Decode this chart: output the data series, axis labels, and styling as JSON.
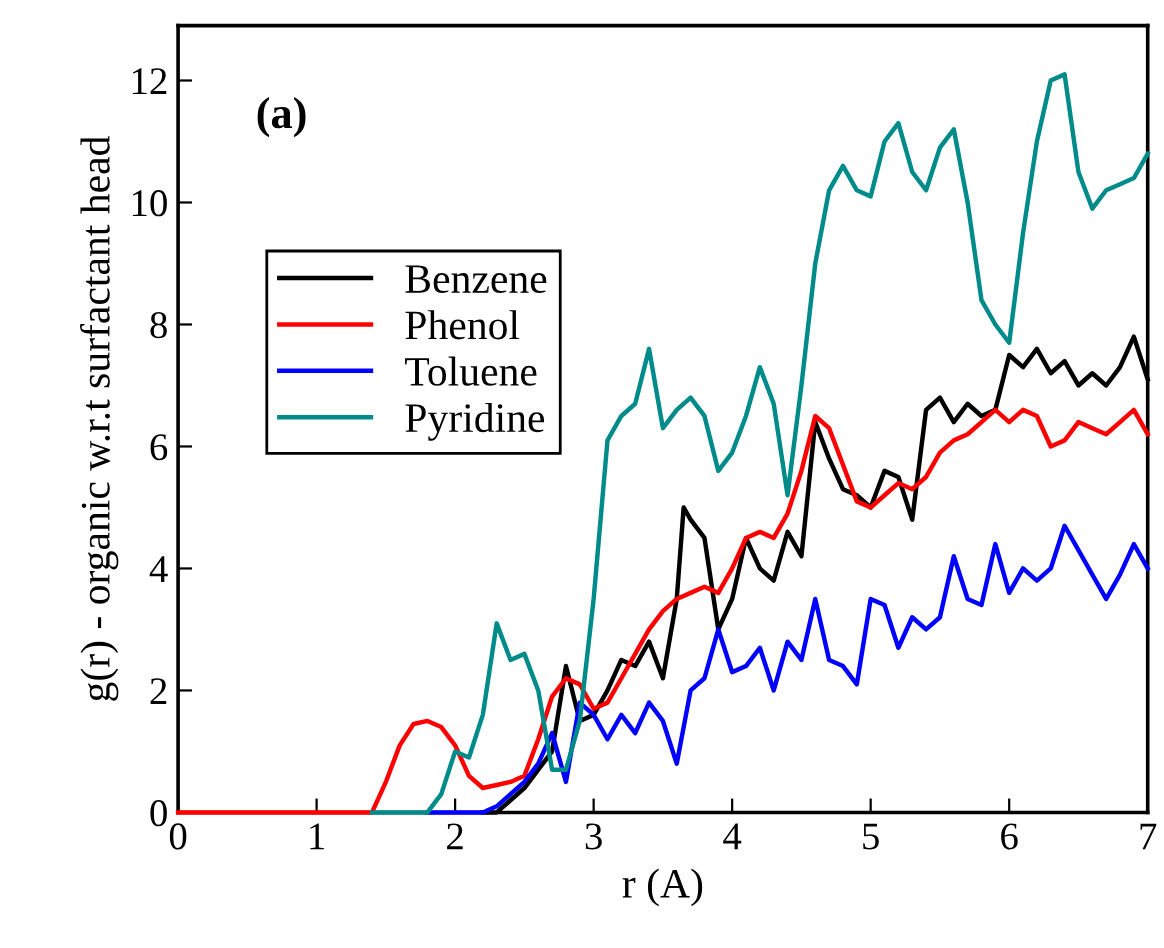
{
  "chart_data": {
    "type": "line",
    "xlabel": "r (A)",
    "ylabel": "g(r) - organic w.r.t surfactant head",
    "annotations": [
      "(a)"
    ],
    "xlim": [
      0,
      7
    ],
    "ylim": [
      0,
      12.9
    ],
    "xticks": [
      0,
      1,
      2,
      3,
      4,
      5,
      6,
      7
    ],
    "yticks": [
      0,
      2,
      4,
      6,
      8,
      10,
      12
    ],
    "grid": false,
    "legend": "top left",
    "marker": "none",
    "line_style": "solid",
    "series": [
      {
        "name": "Benzene",
        "color": "#000000",
        "x": [
          2.2,
          2.3,
          2.4,
          2.5,
          2.6,
          2.7,
          2.8,
          2.9,
          3.0,
          3.1,
          3.2,
          3.3,
          3.4,
          3.5,
          3.6,
          3.65,
          3.7,
          3.8,
          3.9,
          4.0,
          4.1,
          4.2,
          4.3,
          4.4,
          4.5,
          4.6,
          4.7,
          4.8,
          4.9,
          5.0,
          5.1,
          5.2,
          5.3,
          5.4,
          5.5,
          5.6,
          5.7,
          5.8,
          5.9,
          6.0,
          6.1,
          6.2,
          6.3,
          6.4,
          6.5,
          6.6,
          6.7,
          6.8,
          6.9,
          7.0
        ],
        "values": [
          0,
          0,
          0.2,
          0.4,
          0.7,
          1.0,
          2.4,
          1.5,
          1.6,
          2.0,
          2.5,
          2.4,
          2.8,
          2.2,
          3.5,
          5.0,
          4.8,
          4.5,
          3.0,
          3.5,
          4.5,
          4.0,
          3.8,
          4.6,
          4.2,
          6.4,
          5.8,
          5.3,
          5.2,
          5.0,
          5.6,
          5.5,
          4.8,
          6.6,
          6.8,
          6.4,
          6.7,
          6.5,
          6.6,
          7.5,
          7.3,
          7.6,
          7.2,
          7.4,
          7.0,
          7.2,
          7.0,
          7.3,
          7.8,
          7.1
        ]
      },
      {
        "name": "Phenol",
        "color": "#ff0000",
        "x": [
          0,
          1.4,
          1.5,
          1.6,
          1.7,
          1.8,
          1.9,
          2.0,
          2.1,
          2.2,
          2.3,
          2.4,
          2.5,
          2.6,
          2.7,
          2.8,
          2.9,
          3.0,
          3.1,
          3.2,
          3.3,
          3.4,
          3.5,
          3.6,
          3.7,
          3.8,
          3.9,
          4.0,
          4.1,
          4.2,
          4.3,
          4.4,
          4.5,
          4.6,
          4.7,
          4.8,
          4.9,
          5.0,
          5.1,
          5.2,
          5.3,
          5.4,
          5.5,
          5.6,
          5.7,
          5.8,
          5.9,
          6.0,
          6.1,
          6.2,
          6.3,
          6.4,
          6.5,
          6.6,
          6.7,
          6.8,
          6.9,
          7.0
        ],
        "values": [
          0,
          0,
          0.5,
          1.1,
          1.45,
          1.5,
          1.4,
          1.1,
          0.6,
          0.4,
          0.45,
          0.5,
          0.6,
          1.2,
          1.9,
          2.2,
          2.1,
          1.7,
          1.8,
          2.2,
          2.6,
          3.0,
          3.3,
          3.5,
          3.6,
          3.7,
          3.6,
          4.0,
          4.5,
          4.6,
          4.5,
          4.9,
          5.6,
          6.5,
          6.3,
          5.7,
          5.1,
          5.0,
          5.2,
          5.4,
          5.3,
          5.5,
          5.9,
          6.1,
          6.2,
          6.4,
          6.6,
          6.4,
          6.6,
          6.5,
          6.0,
          6.1,
          6.4,
          6.3,
          6.2,
          6.4,
          6.6,
          6.2
        ]
      },
      {
        "name": "Toluene",
        "color": "#0000ff",
        "x": [
          1.8,
          2.2,
          2.3,
          2.4,
          2.5,
          2.6,
          2.7,
          2.8,
          2.9,
          3.0,
          3.1,
          3.2,
          3.3,
          3.4,
          3.5,
          3.6,
          3.7,
          3.8,
          3.9,
          4.0,
          4.1,
          4.2,
          4.3,
          4.4,
          4.5,
          4.6,
          4.7,
          4.8,
          4.9,
          5.0,
          5.1,
          5.2,
          5.3,
          5.4,
          5.5,
          5.6,
          5.7,
          5.8,
          5.9,
          6.0,
          6.1,
          6.2,
          6.3,
          6.4,
          6.5,
          6.6,
          6.7,
          6.8,
          6.9,
          7.0
        ],
        "values": [
          0,
          0,
          0.1,
          0.3,
          0.5,
          0.8,
          1.3,
          0.5,
          1.8,
          1.6,
          1.2,
          1.6,
          1.3,
          1.8,
          1.5,
          0.8,
          2.0,
          2.2,
          3.0,
          2.3,
          2.4,
          2.7,
          2.0,
          2.8,
          2.5,
          3.5,
          2.5,
          2.4,
          2.1,
          3.5,
          3.4,
          2.7,
          3.2,
          3.0,
          3.2,
          4.2,
          3.5,
          3.4,
          4.4,
          3.6,
          4.0,
          3.8,
          4.0,
          4.7,
          4.3,
          3.9,
          3.5,
          3.9,
          4.4,
          4.0
        ]
      },
      {
        "name": "Pyridine",
        "color": "#008b8b",
        "x": [
          1.4,
          1.8,
          1.9,
          2.0,
          2.1,
          2.2,
          2.3,
          2.4,
          2.5,
          2.6,
          2.7,
          2.8,
          2.9,
          3.0,
          3.1,
          3.2,
          3.3,
          3.4,
          3.5,
          3.6,
          3.7,
          3.8,
          3.9,
          4.0,
          4.1,
          4.2,
          4.3,
          4.4,
          4.5,
          4.6,
          4.7,
          4.8,
          4.9,
          5.0,
          5.1,
          5.2,
          5.3,
          5.4,
          5.5,
          5.6,
          5.7,
          5.8,
          5.9,
          6.0,
          6.1,
          6.2,
          6.3,
          6.4,
          6.5,
          6.6,
          6.7,
          6.8,
          6.9,
          7.0
        ],
        "values": [
          0,
          0,
          0.3,
          1.0,
          0.9,
          1.6,
          3.1,
          2.5,
          2.6,
          2.0,
          0.7,
          0.7,
          1.5,
          3.5,
          6.1,
          6.5,
          6.7,
          7.6,
          6.3,
          6.6,
          6.8,
          6.5,
          5.6,
          5.9,
          6.5,
          7.3,
          6.7,
          5.2,
          7.0,
          9.0,
          10.2,
          10.6,
          10.2,
          10.1,
          11.0,
          11.3,
          10.5,
          10.2,
          10.9,
          11.2,
          10.0,
          8.4,
          8.0,
          7.7,
          9.5,
          11.0,
          12.0,
          12.1,
          10.5,
          9.9,
          10.2,
          10.3,
          10.4,
          10.8
        ]
      }
    ]
  }
}
